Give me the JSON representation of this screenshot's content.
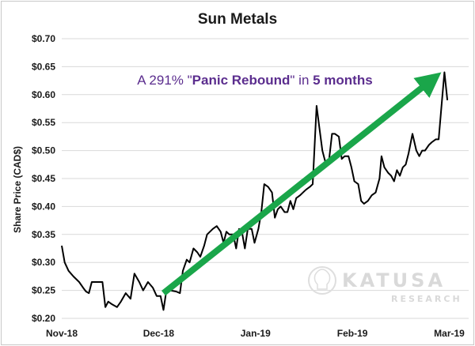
{
  "chart_data": {
    "type": "line",
    "title": "Sun Metals",
    "xlabel": "",
    "ylabel": "Share Price (CAD$)",
    "ylim": [
      0.2,
      0.7
    ],
    "y_ticks": [
      "$0.20",
      "$0.25",
      "$0.30",
      "$0.35",
      "$0.40",
      "$0.45",
      "$0.50",
      "$0.55",
      "$0.60",
      "$0.65",
      "$0.70"
    ],
    "x_ticks": [
      "Nov-18",
      "Dec-18",
      "Jan-19",
      "Feb-19",
      "Mar-19"
    ],
    "grid": true,
    "legend": "none",
    "line_color": "#000000",
    "arrow_color": "#1aa64a",
    "x_unit": "months from Nov-18",
    "series": [
      {
        "points": [
          [
            0.0,
            0.33
          ],
          [
            0.03,
            0.3
          ],
          [
            0.07,
            0.285
          ],
          [
            0.12,
            0.275
          ],
          [
            0.18,
            0.265
          ],
          [
            0.22,
            0.255
          ],
          [
            0.25,
            0.248
          ],
          [
            0.28,
            0.245
          ],
          [
            0.31,
            0.265
          ],
          [
            0.35,
            0.265
          ],
          [
            0.42,
            0.265
          ],
          [
            0.45,
            0.22
          ],
          [
            0.48,
            0.23
          ],
          [
            0.52,
            0.225
          ],
          [
            0.57,
            0.22
          ],
          [
            0.61,
            0.23
          ],
          [
            0.66,
            0.245
          ],
          [
            0.71,
            0.235
          ],
          [
            0.75,
            0.28
          ],
          [
            0.8,
            0.265
          ],
          [
            0.84,
            0.25
          ],
          [
            0.89,
            0.265
          ],
          [
            0.94,
            0.255
          ],
          [
            0.98,
            0.24
          ],
          [
            1.02,
            0.24
          ],
          [
            1.05,
            0.215
          ],
          [
            1.08,
            0.25
          ],
          [
            1.12,
            0.25
          ],
          [
            1.18,
            0.248
          ],
          [
            1.22,
            0.245
          ],
          [
            1.25,
            0.285
          ],
          [
            1.29,
            0.305
          ],
          [
            1.32,
            0.3
          ],
          [
            1.36,
            0.325
          ],
          [
            1.4,
            0.318
          ],
          [
            1.43,
            0.31
          ],
          [
            1.47,
            0.33
          ],
          [
            1.5,
            0.35
          ],
          [
            1.53,
            0.355
          ],
          [
            1.56,
            0.36
          ],
          [
            1.6,
            0.365
          ],
          [
            1.64,
            0.355
          ],
          [
            1.67,
            0.335
          ],
          [
            1.7,
            0.355
          ],
          [
            1.73,
            0.35
          ],
          [
            1.77,
            0.35
          ],
          [
            1.8,
            0.325
          ],
          [
            1.83,
            0.36
          ],
          [
            1.86,
            0.355
          ],
          [
            1.89,
            0.325
          ],
          [
            1.92,
            0.36
          ],
          [
            1.96,
            0.36
          ],
          [
            1.99,
            0.335
          ],
          [
            2.03,
            0.36
          ],
          [
            2.06,
            0.39
          ],
          [
            2.09,
            0.44
          ],
          [
            2.13,
            0.435
          ],
          [
            2.17,
            0.425
          ],
          [
            2.2,
            0.38
          ],
          [
            2.23,
            0.395
          ],
          [
            2.26,
            0.4
          ],
          [
            2.3,
            0.39
          ],
          [
            2.33,
            0.39
          ],
          [
            2.36,
            0.41
          ],
          [
            2.39,
            0.395
          ],
          [
            2.42,
            0.415
          ],
          [
            2.46,
            0.42
          ],
          [
            2.49,
            0.425
          ],
          [
            2.52,
            0.43
          ],
          [
            2.56,
            0.435
          ],
          [
            2.59,
            0.44
          ],
          [
            2.63,
            0.58
          ],
          [
            2.66,
            0.54
          ],
          [
            2.69,
            0.5
          ],
          [
            2.72,
            0.48
          ],
          [
            2.76,
            0.485
          ],
          [
            2.79,
            0.53
          ],
          [
            2.82,
            0.53
          ],
          [
            2.86,
            0.525
          ],
          [
            2.89,
            0.485
          ],
          [
            2.92,
            0.49
          ],
          [
            2.96,
            0.49
          ],
          [
            2.99,
            0.47
          ],
          [
            3.02,
            0.445
          ],
          [
            3.06,
            0.44
          ],
          [
            3.09,
            0.41
          ],
          [
            3.12,
            0.405
          ],
          [
            3.16,
            0.41
          ],
          [
            3.2,
            0.42
          ],
          [
            3.24,
            0.425
          ],
          [
            3.28,
            0.45
          ],
          [
            3.3,
            0.49
          ],
          [
            3.33,
            0.47
          ],
          [
            3.37,
            0.46
          ],
          [
            3.4,
            0.455
          ],
          [
            3.43,
            0.445
          ],
          [
            3.46,
            0.465
          ],
          [
            3.49,
            0.455
          ],
          [
            3.52,
            0.47
          ],
          [
            3.55,
            0.475
          ],
          [
            3.58,
            0.495
          ],
          [
            3.62,
            0.53
          ],
          [
            3.66,
            0.5
          ],
          [
            3.69,
            0.49
          ],
          [
            3.72,
            0.5
          ],
          [
            3.75,
            0.5
          ],
          [
            3.79,
            0.51
          ],
          [
            3.82,
            0.515
          ],
          [
            3.86,
            0.52
          ],
          [
            3.89,
            0.52
          ],
          [
            3.92,
            0.58
          ],
          [
            3.95,
            0.64
          ],
          [
            3.98,
            0.59
          ]
        ]
      }
    ],
    "annotations": [
      {
        "parts": [
          {
            "text": "A 291% \"",
            "weight": "normal"
          },
          {
            "text": "Panic Rebound",
            "weight": "bold"
          },
          {
            "text": "\" in ",
            "weight": "normal"
          },
          {
            "text": "5 months",
            "weight": "bold"
          }
        ],
        "color": "#5b2d8e"
      }
    ],
    "arrow": {
      "from": [
        1.05,
        0.245
      ],
      "to": [
        3.94,
        0.64
      ]
    }
  },
  "watermark": {
    "name": "KATUSA",
    "sub": "RESEARCH"
  }
}
